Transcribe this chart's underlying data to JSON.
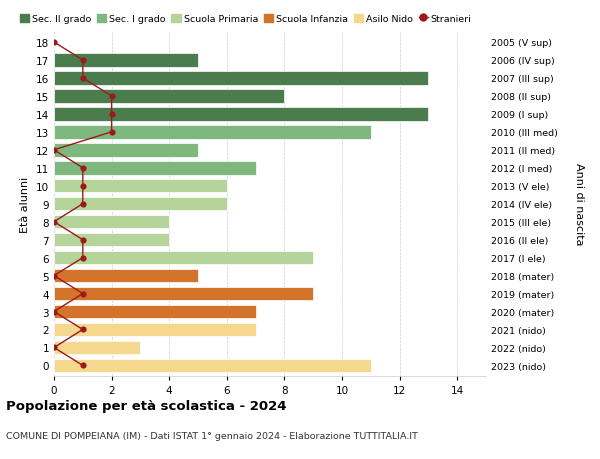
{
  "ages": [
    18,
    17,
    16,
    15,
    14,
    13,
    12,
    11,
    10,
    9,
    8,
    7,
    6,
    5,
    4,
    3,
    2,
    1,
    0
  ],
  "right_labels": [
    "2005 (V sup)",
    "2006 (IV sup)",
    "2007 (III sup)",
    "2008 (II sup)",
    "2009 (I sup)",
    "2010 (III med)",
    "2011 (II med)",
    "2012 (I med)",
    "2013 (V ele)",
    "2014 (IV ele)",
    "2015 (III ele)",
    "2016 (II ele)",
    "2017 (I ele)",
    "2018 (mater)",
    "2019 (mater)",
    "2020 (mater)",
    "2021 (nido)",
    "2022 (nido)",
    "2023 (nido)"
  ],
  "bar_values": [
    0,
    5,
    13,
    8,
    13,
    11,
    5,
    7,
    6,
    6,
    4,
    4,
    9,
    5,
    9,
    7,
    7,
    3,
    11
  ],
  "bar_colors": [
    "#4a7c4e",
    "#4a7c4e",
    "#4a7c4e",
    "#4a7c4e",
    "#4a7c4e",
    "#7eb87e",
    "#7eb87e",
    "#7eb87e",
    "#b5d49a",
    "#b5d49a",
    "#b5d49a",
    "#b5d49a",
    "#b5d49a",
    "#d4732a",
    "#d4732a",
    "#d4732a",
    "#f5d78e",
    "#f5d78e",
    "#f5d78e"
  ],
  "stranieri_values": [
    0,
    1,
    1,
    2,
    2,
    2,
    0,
    1,
    1,
    1,
    0,
    1,
    1,
    0,
    1,
    0,
    1,
    0,
    1
  ],
  "stranieri_color": "#9b1b1b",
  "title": "Popolazione per età scolastica - 2024",
  "subtitle": "COMUNE DI POMPEIANA (IM) - Dati ISTAT 1° gennaio 2024 - Elaborazione TUTTITALIA.IT",
  "ylabel_left": "Età alunni",
  "ylabel_right": "Anni di nascita",
  "xlim": [
    0,
    15
  ],
  "xticks": [
    0,
    2,
    4,
    6,
    8,
    10,
    12,
    14
  ],
  "legend_labels": [
    "Sec. II grado",
    "Sec. I grado",
    "Scuola Primaria",
    "Scuola Infanzia",
    "Asilo Nido",
    "Stranieri"
  ],
  "legend_colors": [
    "#4a7c4e",
    "#7eb87e",
    "#b5d49a",
    "#d4732a",
    "#f5d78e",
    "#9b1b1b"
  ],
  "background_color": "#ffffff",
  "grid_color": "#cccccc"
}
